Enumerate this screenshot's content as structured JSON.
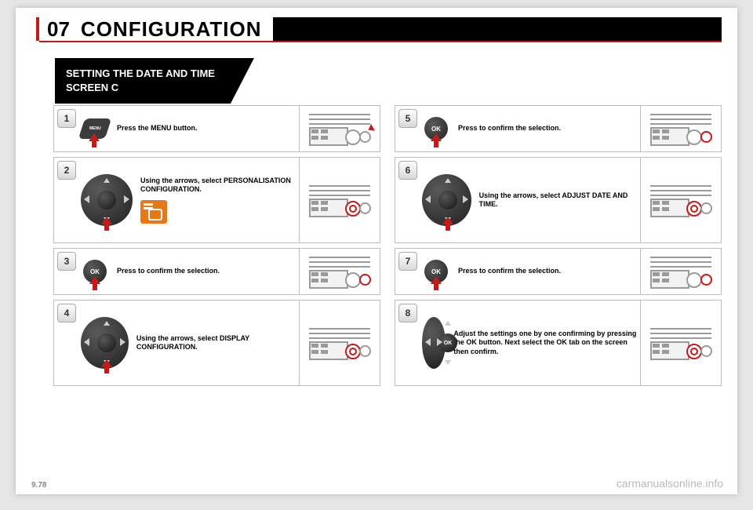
{
  "header": {
    "section": "07",
    "title": "CONFIGURATION"
  },
  "subheader": "SETTING THE DATE AND TIME\nSCREEN C",
  "footer": {
    "page": "9.78",
    "watermark": "carmanualsonline.info"
  },
  "colors": {
    "accent": "#c81919",
    "orange": "#e77817",
    "gray": "#9a9a9a",
    "dark": "#3c3c3c"
  },
  "steps": {
    "s1": {
      "n": "1",
      "text": "Press the MENU button.",
      "control": "menu",
      "radio": "arrow"
    },
    "s2": {
      "n": "2",
      "text": "Using the arrows, select PERSONALISATION CONFIGURATION.",
      "control": "dpad",
      "extra": "cfg",
      "radio": "hilite"
    },
    "s3": {
      "n": "3",
      "text": "Press to confirm the selection.",
      "control": "ok",
      "radio": "hilite2"
    },
    "s4": {
      "n": "4",
      "text": "Using the arrows, select DISPLAY CONFIGURATION.",
      "control": "dpad",
      "radio": "hilite"
    },
    "s5": {
      "n": "5",
      "text": "Press to confirm the selection.",
      "control": "ok",
      "radio": "hilite2"
    },
    "s6": {
      "n": "6",
      "text": "Using the arrows, select ADJUST DATE AND TIME.",
      "control": "dpad",
      "radio": "hilite"
    },
    "s7": {
      "n": "7",
      "text": "Press to confirm the selection.",
      "control": "ok",
      "radio": "hilite2"
    },
    "s8": {
      "n": "8",
      "text": "Adjust the settings one by one confirming by pressing the OK button. Next select the OK tab on the screen then confirm.",
      "control": "dpad-ok",
      "radio": "hilite"
    }
  }
}
